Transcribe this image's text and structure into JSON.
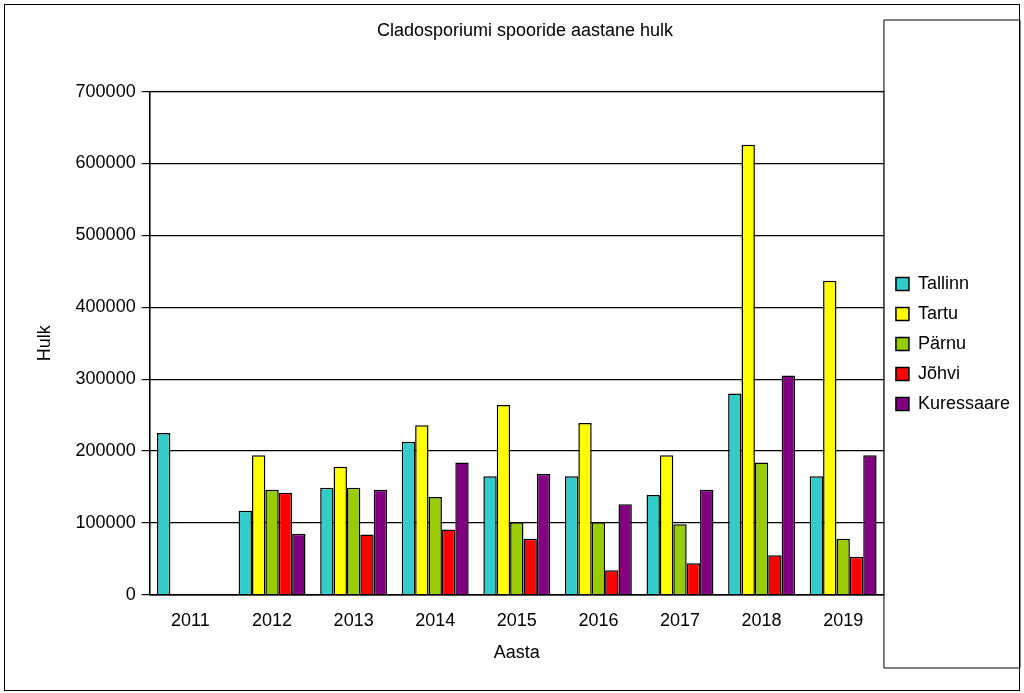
{
  "chart_data": {
    "type": "bar",
    "title": "Cladosporiumi spooride aastane hulk",
    "xlabel": "Aasta",
    "ylabel": "Hulk",
    "categories": [
      "2011",
      "2012",
      "2013",
      "2014",
      "2015",
      "2016",
      "2017",
      "2018",
      "2019"
    ],
    "series": [
      {
        "name": "Tallinn",
        "color": "#33cccc",
        "values": [
          225000,
          117000,
          149000,
          213000,
          165000,
          165000,
          139000,
          280000,
          165000
        ]
      },
      {
        "name": "Tartu",
        "color": "#ffff00",
        "values": [
          null,
          194000,
          178000,
          236000,
          264000,
          239000,
          194000,
          626000,
          437000
        ]
      },
      {
        "name": "Pärnu",
        "color": "#99cc00",
        "values": [
          null,
          146000,
          149000,
          136000,
          101000,
          101000,
          98000,
          184000,
          78000
        ]
      },
      {
        "name": "Jõhvi",
        "color": "#ff0000",
        "values": [
          null,
          142000,
          84000,
          91000,
          78000,
          34000,
          44000,
          55000,
          53000
        ]
      },
      {
        "name": "Kuressaare",
        "color": "#800080",
        "values": [
          null,
          85000,
          146000,
          184000,
          168000,
          126000,
          146000,
          305000,
          194000
        ]
      }
    ],
    "ylim": [
      0,
      700000
    ],
    "yticks": [
      0,
      100000,
      200000,
      300000,
      400000,
      500000,
      600000,
      700000
    ],
    "grid": "y",
    "legend": "right"
  }
}
